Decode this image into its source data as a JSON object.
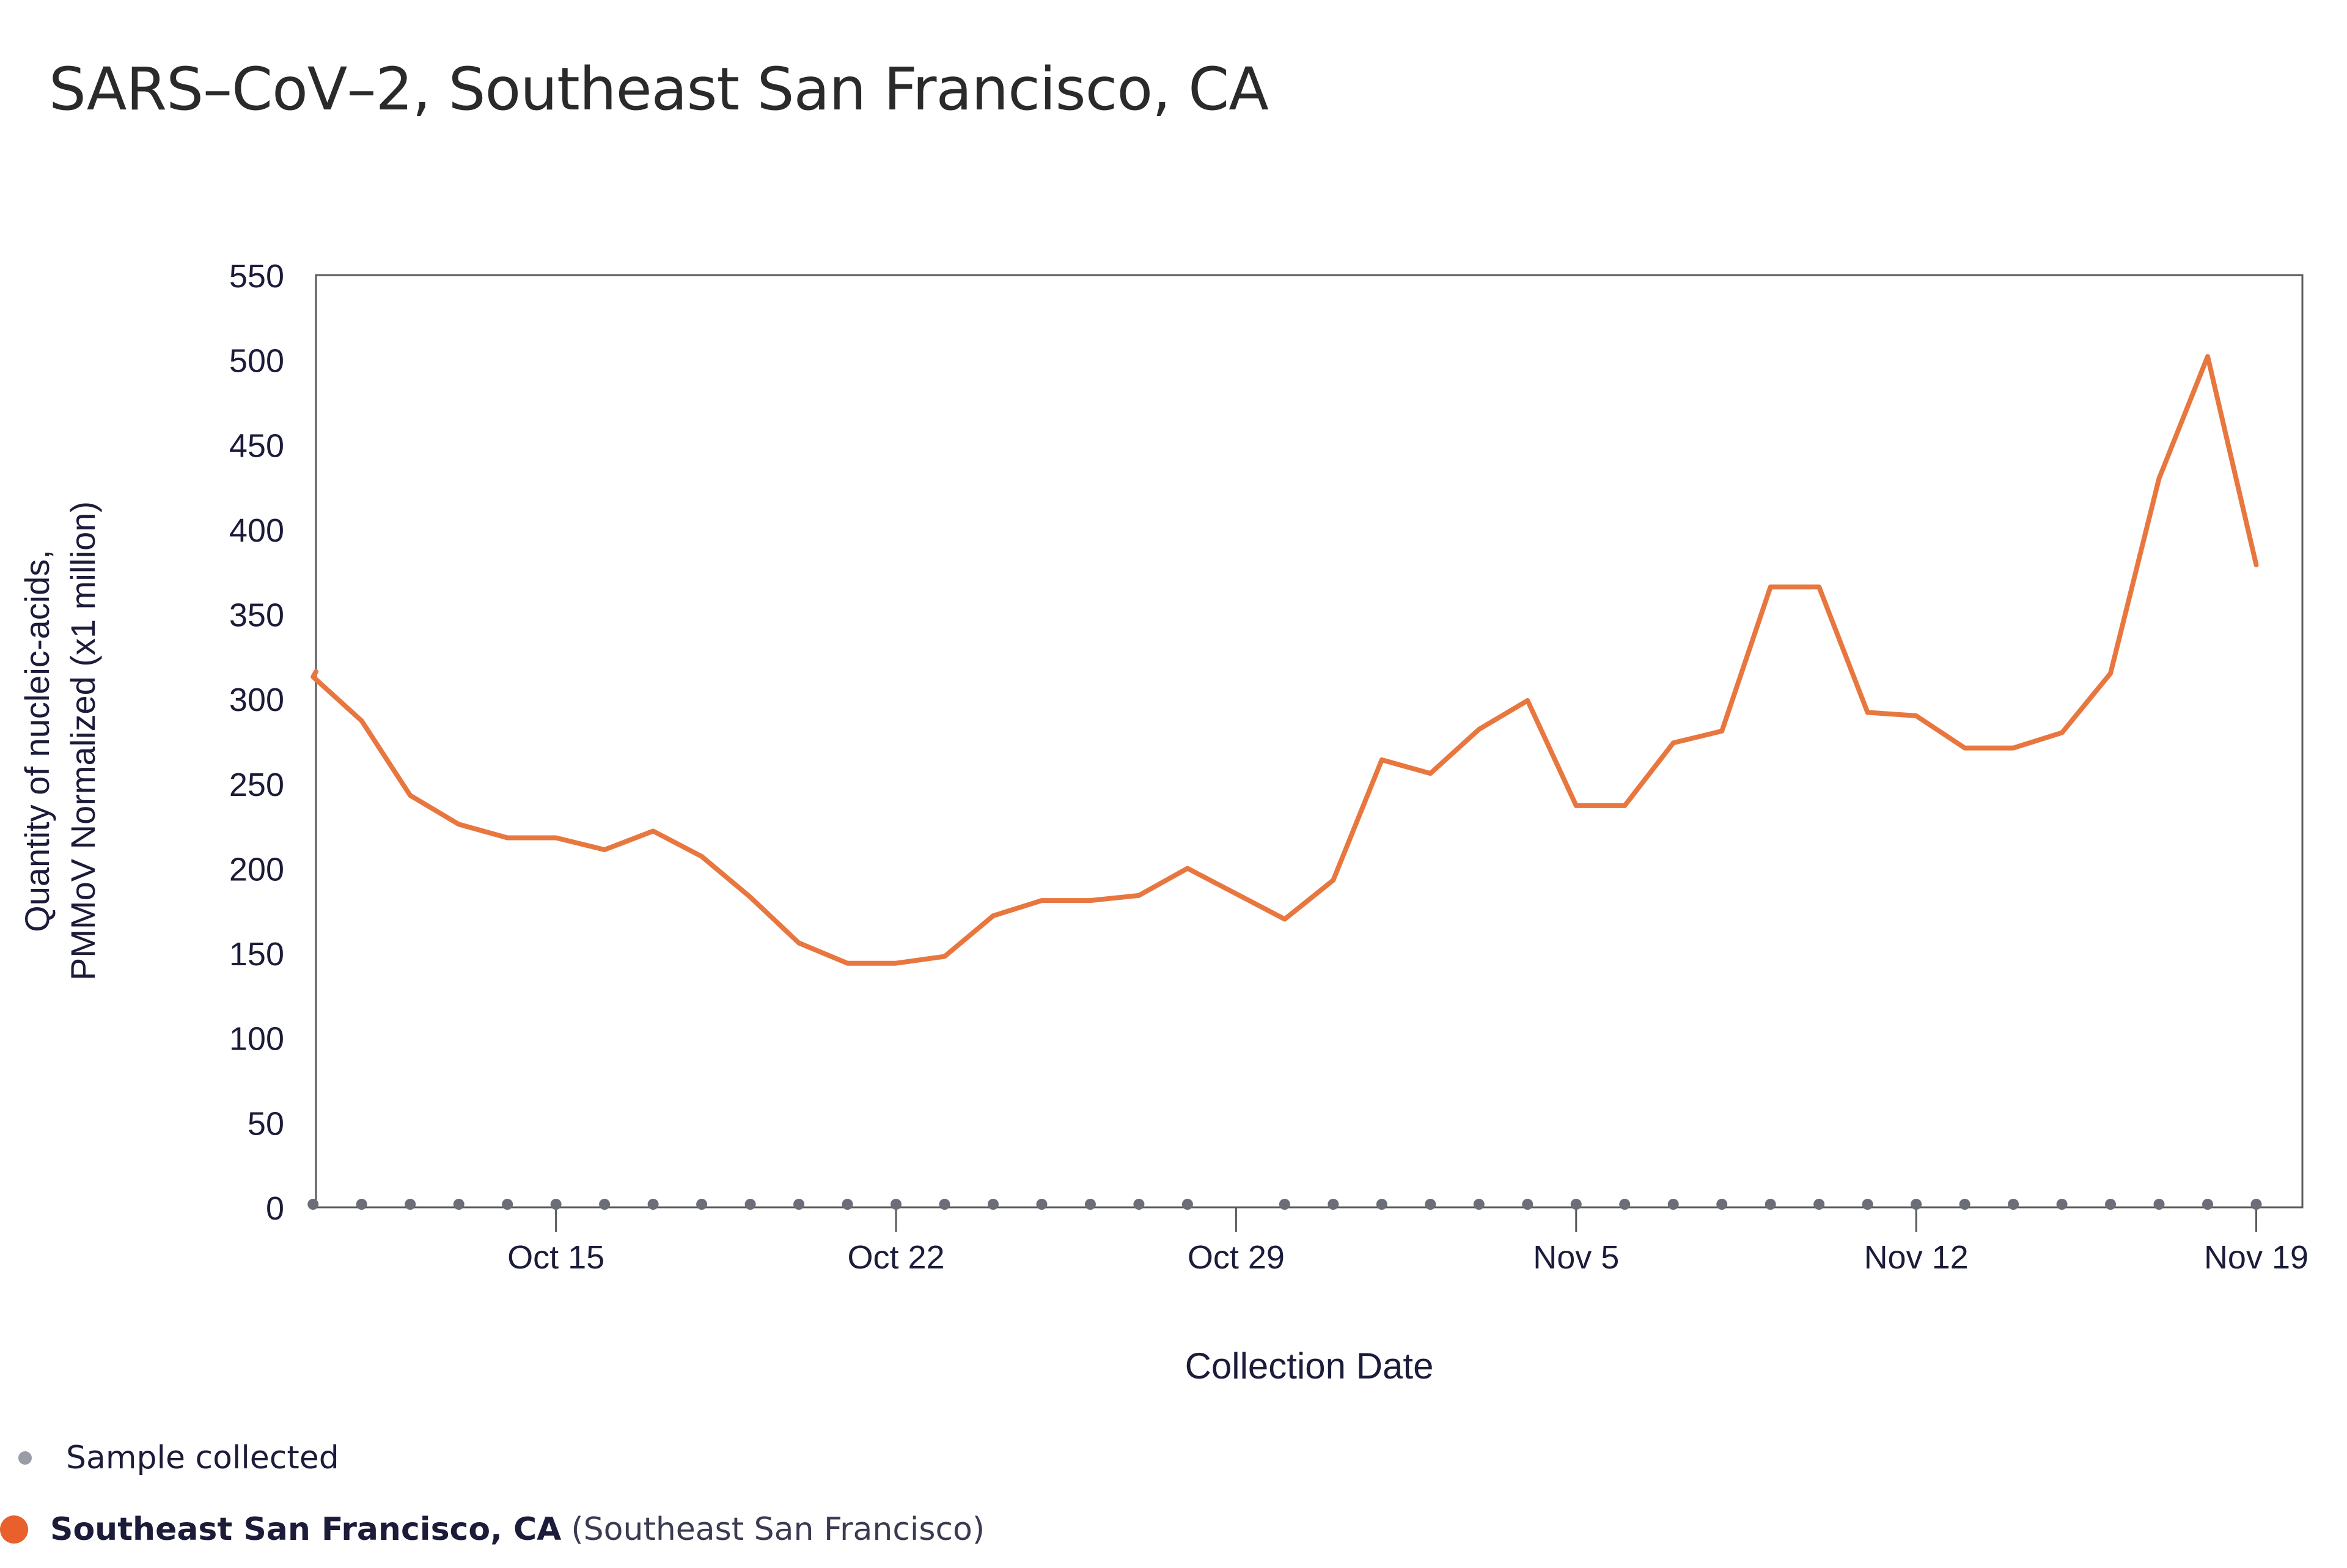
{
  "title": "SARS–CoV–2, Southeast San Francisco, CA",
  "legend": {
    "sample_label": "Sample collected",
    "series_name": "Southeast San Francisco, CA",
    "series_detail": "(Southeast San Francisco)"
  },
  "colors": {
    "series": "#e8773f",
    "legend_series_dot": "#e8602c",
    "sample_dot": "#6b6e78",
    "axis": "#5a5a5a",
    "text": "#1b1b3a"
  },
  "chart_data": {
    "type": "line",
    "xlabel": "Collection Date",
    "ylabel": [
      "Quantity of nucleic-acids,",
      "PMMoV Normalized (x1 million)"
    ],
    "ylim": [
      0,
      550
    ],
    "yticks": [
      0,
      50,
      100,
      150,
      200,
      250,
      300,
      350,
      400,
      450,
      500,
      550
    ],
    "xlim": [
      "2023-10-10",
      "2023-11-20"
    ],
    "xticks": [
      {
        "date": "2023-10-15",
        "label": "Oct 15"
      },
      {
        "date": "2023-10-22",
        "label": "Oct 22"
      },
      {
        "date": "2023-10-29",
        "label": "Oct 29"
      },
      {
        "date": "2023-11-05",
        "label": "Nov 5"
      },
      {
        "date": "2023-11-12",
        "label": "Nov 12"
      },
      {
        "date": "2023-11-19",
        "label": "Nov 19"
      }
    ],
    "grid": false,
    "series": [
      {
        "name": "Southeast San Francisco, CA",
        "points": [
          [
            "2023-10-10",
            316
          ],
          [
            "2023-10-10",
            313
          ],
          [
            "2023-10-11",
            287
          ],
          [
            "2023-10-12",
            243
          ],
          [
            "2023-10-13",
            226
          ],
          [
            "2023-10-14",
            218
          ],
          [
            "2023-10-15",
            218
          ],
          [
            "2023-10-16",
            211
          ],
          [
            "2023-10-17",
            222
          ],
          [
            "2023-10-18",
            207
          ],
          [
            "2023-10-19",
            183
          ],
          [
            "2023-10-20",
            156
          ],
          [
            "2023-10-21",
            144
          ],
          [
            "2023-10-22",
            144
          ],
          [
            "2023-10-23",
            148
          ],
          [
            "2023-10-24",
            172
          ],
          [
            "2023-10-25",
            181
          ],
          [
            "2023-10-26",
            181
          ],
          [
            "2023-10-27",
            184
          ],
          [
            "2023-10-28",
            200
          ],
          [
            "2023-10-29",
            185
          ],
          [
            "2023-10-30",
            170
          ],
          [
            "2023-10-31",
            193
          ],
          [
            "2023-11-01",
            264
          ],
          [
            "2023-11-02",
            256
          ],
          [
            "2023-11-03",
            282
          ],
          [
            "2023-11-04",
            299
          ],
          [
            "2023-11-05",
            237
          ],
          [
            "2023-11-06",
            237
          ],
          [
            "2023-11-07",
            274
          ],
          [
            "2023-11-08",
            281
          ],
          [
            "2023-11-09",
            366
          ],
          [
            "2023-11-10",
            366
          ],
          [
            "2023-11-11",
            292
          ],
          [
            "2023-11-12",
            290
          ],
          [
            "2023-11-13",
            271
          ],
          [
            "2023-11-14",
            271
          ],
          [
            "2023-11-15",
            280
          ],
          [
            "2023-11-16",
            315
          ],
          [
            "2023-11-17",
            430
          ],
          [
            "2023-11-18",
            502
          ],
          [
            "2023-11-19",
            379
          ]
        ]
      }
    ],
    "samples_collected": [
      "2023-10-10",
      "2023-10-11",
      "2023-10-12",
      "2023-10-13",
      "2023-10-14",
      "2023-10-15",
      "2023-10-16",
      "2023-10-17",
      "2023-10-18",
      "2023-10-19",
      "2023-10-20",
      "2023-10-21",
      "2023-10-22",
      "2023-10-23",
      "2023-10-24",
      "2023-10-25",
      "2023-10-26",
      "2023-10-27",
      "2023-10-28",
      "2023-10-30",
      "2023-10-31",
      "2023-11-01",
      "2023-11-02",
      "2023-11-03",
      "2023-11-04",
      "2023-11-05",
      "2023-11-06",
      "2023-11-07",
      "2023-11-08",
      "2023-11-09",
      "2023-11-10",
      "2023-11-11",
      "2023-11-12",
      "2023-11-13",
      "2023-11-14",
      "2023-11-15",
      "2023-11-16",
      "2023-11-17",
      "2023-11-18",
      "2023-11-19"
    ]
  }
}
